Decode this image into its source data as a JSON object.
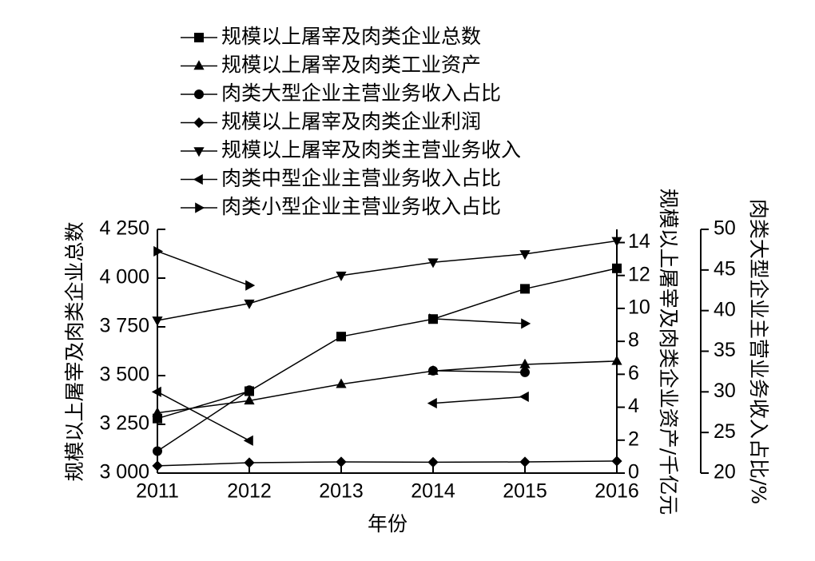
{
  "chart_data": {
    "type": "line",
    "x_label": "年份",
    "y_label": "规模以上屠宰及肉类企业总数",
    "y2_label": "规模以上屠宰及肉类企业资产/千亿元",
    "y3_label": "肉类大型企业主营业务收入占比/%",
    "categories": [
      "2011",
      "2012",
      "2013",
      "2014",
      "2015",
      "2016"
    ],
    "ylim": [
      3000,
      4250
    ],
    "yticks": [
      {
        "value": 3000,
        "label": "3 000"
      },
      {
        "value": 3250,
        "label": "3 250"
      },
      {
        "value": 3500,
        "label": "3 500"
      },
      {
        "value": 3750,
        "label": "3 750"
      },
      {
        "value": 4000,
        "label": "4 000"
      },
      {
        "value": 4250,
        "label": "4 250"
      }
    ],
    "y2lim": [
      0,
      14.8
    ],
    "y2ticks": [
      0,
      2,
      4,
      6,
      8,
      10,
      12,
      14
    ],
    "y3lim": [
      20,
      50
    ],
    "y3ticks": [
      20,
      25,
      30,
      35,
      40,
      45,
      50
    ],
    "series": [
      {
        "name": "规模以上屠宰及肉类企业总数",
        "color": "#000000",
        "marker": "square",
        "axis": "y",
        "values": [
          3280,
          3420,
          3700,
          3790,
          3945,
          4050
        ]
      },
      {
        "name": "规模以上屠宰及肉类工业资产",
        "color": "#000000",
        "marker": "triangle-up",
        "axis": "y2",
        "values": [
          3.66,
          4.4,
          5.4,
          6.2,
          6.6,
          6.8
        ]
      },
      {
        "name": "肉类大型企业主营业务收入占比",
        "color": "#000000",
        "marker": "circle",
        "axis": "y3",
        "values": [
          22.7,
          30.2,
          null,
          32.6,
          32.4,
          null
        ]
      },
      {
        "name": "规模以上屠宰及肉类企业利润",
        "color": "#000000",
        "marker": "diamond",
        "axis": "y2",
        "values": [
          0.44,
          0.63,
          0.68,
          0.66,
          0.68,
          0.73
        ]
      },
      {
        "name": "规模以上屠宰及肉类主营业务收入",
        "color": "#000000",
        "marker": "triangle-down",
        "axis": "y2",
        "values": [
          9.27,
          10.3,
          12.0,
          12.8,
          13.3,
          14.1
        ]
      },
      {
        "name": "肉类中型企业主营业务收入占比",
        "color": "#000000",
        "marker": "triangle-left",
        "axis": "y3",
        "values": [
          30.0,
          24.0,
          null,
          28.6,
          29.4,
          null
        ]
      },
      {
        "name": "肉类小型企业主营业务收入占比",
        "color": "#000000",
        "marker": "triangle-right",
        "axis": "y3",
        "values": [
          47.3,
          43.1,
          null,
          39.0,
          38.4,
          null
        ]
      }
    ]
  }
}
